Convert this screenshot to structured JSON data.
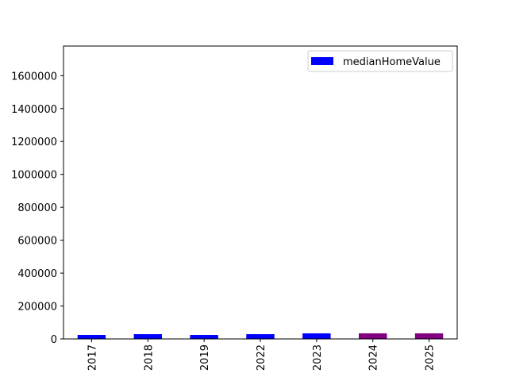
{
  "chart_data": {
    "type": "bar",
    "categories": [
      "2017",
      "2018",
      "2019",
      "2022",
      "2023",
      "2024",
      "2025"
    ],
    "series": [
      {
        "name": "medianHomeValue",
        "color": "#0000ff",
        "bar_colors": [
          "#0000ff",
          "#0000ff",
          "#0000ff",
          "#0000ff",
          "#0000ff",
          "#800080",
          "#800080"
        ],
        "values": [
          24000,
          29000,
          24000,
          29000,
          34000,
          34000,
          34000
        ]
      }
    ],
    "ylim": [
      0,
      1780000
    ],
    "yticks": [
      0,
      200000,
      400000,
      600000,
      800000,
      1000000,
      1200000,
      1400000,
      1600000
    ],
    "legend": "upper right",
    "grid": false
  }
}
